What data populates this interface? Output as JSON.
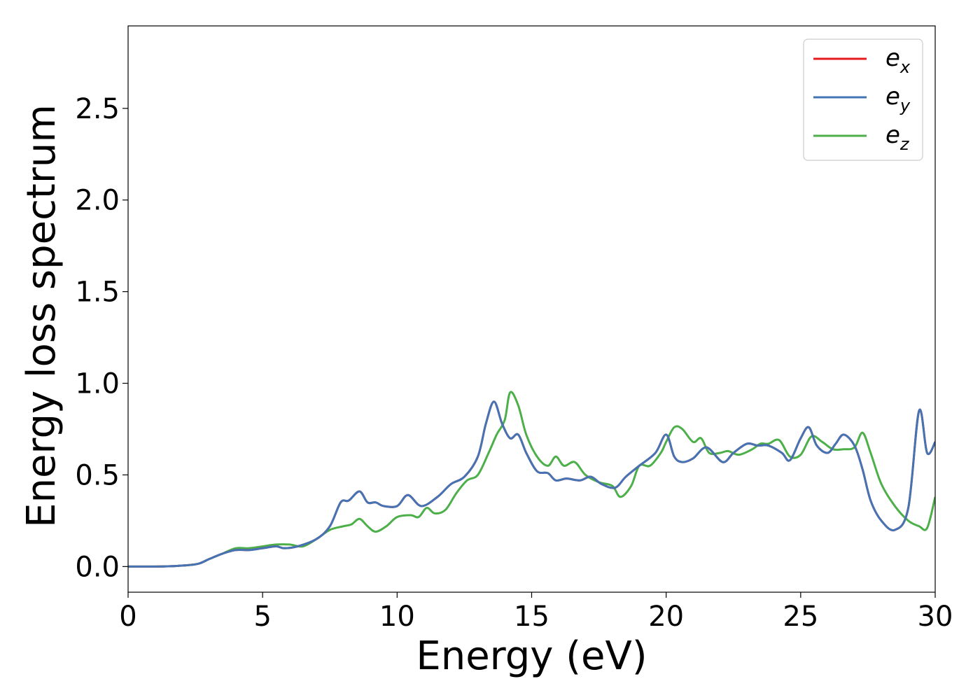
{
  "chart_data": {
    "type": "line",
    "xlabel": "Energy (eV)",
    "ylabel": "Energy loss spectrum",
    "xlim": [
      0,
      30
    ],
    "ylim": [
      -0.14,
      2.95
    ],
    "xticks": [
      "0",
      "5",
      "10",
      "15",
      "20",
      "25",
      "30"
    ],
    "yticks": [
      "0.0",
      "0.5",
      "1.0",
      "1.5",
      "2.0",
      "2.5"
    ],
    "grid": false,
    "legend_position": "top-right",
    "series": [
      {
        "name": "e_x",
        "legend_base": "e",
        "legend_sub": "x",
        "color": "#e41a1c",
        "x": [
          0,
          1,
          2,
          2.6,
          3,
          3.5,
          4,
          4.5,
          5,
          5.5,
          5.8,
          6.3,
          7,
          7.5,
          7.9,
          8.2,
          8.6,
          8.9,
          9.2,
          9.5,
          10,
          10.4,
          10.9,
          11.5,
          12,
          12.5,
          13,
          13.3,
          13.6,
          13.9,
          14.2,
          14.5,
          14.8,
          15.2,
          15.6,
          15.9,
          16.3,
          16.8,
          17.2,
          17.6,
          18.1,
          18.5,
          19,
          19.6,
          20,
          20.3,
          20.6,
          21,
          21.5,
          22.1,
          22.5,
          23,
          23.4,
          23.8,
          24.3,
          24.6,
          25,
          25.3,
          25.6,
          26,
          26.3,
          26.6,
          27,
          27.3,
          27.6,
          28,
          28.5,
          29,
          29.4,
          29.7,
          30
        ],
        "values": [
          0,
          0,
          0.005,
          0.015,
          0.04,
          0.07,
          0.09,
          0.09,
          0.1,
          0.11,
          0.1,
          0.11,
          0.15,
          0.22,
          0.35,
          0.36,
          0.41,
          0.35,
          0.35,
          0.33,
          0.33,
          0.39,
          0.33,
          0.38,
          0.45,
          0.49,
          0.6,
          0.78,
          0.9,
          0.78,
          0.7,
          0.72,
          0.62,
          0.52,
          0.51,
          0.47,
          0.48,
          0.47,
          0.49,
          0.45,
          0.43,
          0.49,
          0.55,
          0.62,
          0.72,
          0.6,
          0.57,
          0.59,
          0.65,
          0.57,
          0.62,
          0.67,
          0.66,
          0.66,
          0.62,
          0.58,
          0.7,
          0.76,
          0.66,
          0.62,
          0.67,
          0.72,
          0.66,
          0.53,
          0.36,
          0.25,
          0.2,
          0.32,
          0.85,
          0.62,
          0.68
        ]
      },
      {
        "name": "e_y",
        "legend_base": "e",
        "legend_sub": "y",
        "color": "#4574b4",
        "x": [
          0,
          1,
          2,
          2.6,
          3,
          3.5,
          4,
          4.5,
          5,
          5.5,
          5.8,
          6.3,
          7,
          7.5,
          7.9,
          8.2,
          8.6,
          8.9,
          9.2,
          9.5,
          10,
          10.4,
          10.9,
          11.5,
          12,
          12.5,
          13,
          13.3,
          13.6,
          13.9,
          14.2,
          14.5,
          14.8,
          15.2,
          15.6,
          15.9,
          16.3,
          16.8,
          17.2,
          17.6,
          18.1,
          18.5,
          19,
          19.6,
          20,
          20.3,
          20.6,
          21,
          21.5,
          22.1,
          22.5,
          23,
          23.4,
          23.8,
          24.3,
          24.6,
          25,
          25.3,
          25.6,
          26,
          26.3,
          26.6,
          27,
          27.3,
          27.6,
          28,
          28.5,
          29,
          29.4,
          29.7,
          30
        ],
        "values": [
          0,
          0,
          0.005,
          0.015,
          0.04,
          0.07,
          0.09,
          0.09,
          0.1,
          0.11,
          0.1,
          0.11,
          0.15,
          0.22,
          0.35,
          0.36,
          0.41,
          0.35,
          0.35,
          0.33,
          0.33,
          0.39,
          0.33,
          0.38,
          0.45,
          0.49,
          0.6,
          0.78,
          0.9,
          0.78,
          0.7,
          0.72,
          0.62,
          0.52,
          0.51,
          0.47,
          0.48,
          0.47,
          0.49,
          0.45,
          0.43,
          0.49,
          0.55,
          0.62,
          0.72,
          0.6,
          0.57,
          0.59,
          0.65,
          0.57,
          0.62,
          0.67,
          0.66,
          0.66,
          0.62,
          0.58,
          0.7,
          0.76,
          0.66,
          0.62,
          0.67,
          0.72,
          0.66,
          0.53,
          0.36,
          0.25,
          0.2,
          0.32,
          0.85,
          0.62,
          0.68
        ]
      },
      {
        "name": "e_z",
        "legend_base": "e",
        "legend_sub": "z",
        "color": "#4daf4a",
        "x": [
          0,
          1,
          2,
          2.6,
          3,
          3.5,
          4,
          4.5,
          5,
          5.5,
          6,
          6.5,
          7,
          7.5,
          8,
          8.3,
          8.6,
          8.9,
          9.2,
          9.6,
          10,
          10.5,
          10.8,
          11.1,
          11.4,
          11.8,
          12.2,
          12.6,
          13,
          13.4,
          13.7,
          14,
          14.2,
          14.5,
          14.8,
          15.2,
          15.6,
          15.9,
          16.2,
          16.6,
          17,
          17.5,
          18,
          18.3,
          18.7,
          19,
          19.4,
          19.8,
          20,
          20.3,
          20.6,
          21,
          21.3,
          21.6,
          22,
          22.3,
          22.7,
          23.2,
          23.5,
          23.8,
          24.2,
          24.6,
          25,
          25.4,
          25.8,
          26.2,
          26.6,
          27,
          27.3,
          27.6,
          28,
          28.5,
          29,
          29.4,
          29.7,
          30
        ],
        "values": [
          0,
          0,
          0.005,
          0.015,
          0.04,
          0.07,
          0.1,
          0.1,
          0.11,
          0.12,
          0.12,
          0.11,
          0.15,
          0.2,
          0.22,
          0.23,
          0.26,
          0.22,
          0.19,
          0.22,
          0.27,
          0.28,
          0.27,
          0.32,
          0.29,
          0.31,
          0.4,
          0.47,
          0.5,
          0.62,
          0.72,
          0.8,
          0.95,
          0.88,
          0.72,
          0.6,
          0.55,
          0.6,
          0.55,
          0.57,
          0.5,
          0.46,
          0.44,
          0.38,
          0.44,
          0.55,
          0.55,
          0.62,
          0.68,
          0.76,
          0.75,
          0.68,
          0.7,
          0.62,
          0.62,
          0.63,
          0.61,
          0.64,
          0.67,
          0.67,
          0.69,
          0.6,
          0.61,
          0.71,
          0.68,
          0.64,
          0.64,
          0.65,
          0.73,
          0.62,
          0.45,
          0.33,
          0.25,
          0.22,
          0.21,
          0.38
        ]
      }
    ]
  }
}
